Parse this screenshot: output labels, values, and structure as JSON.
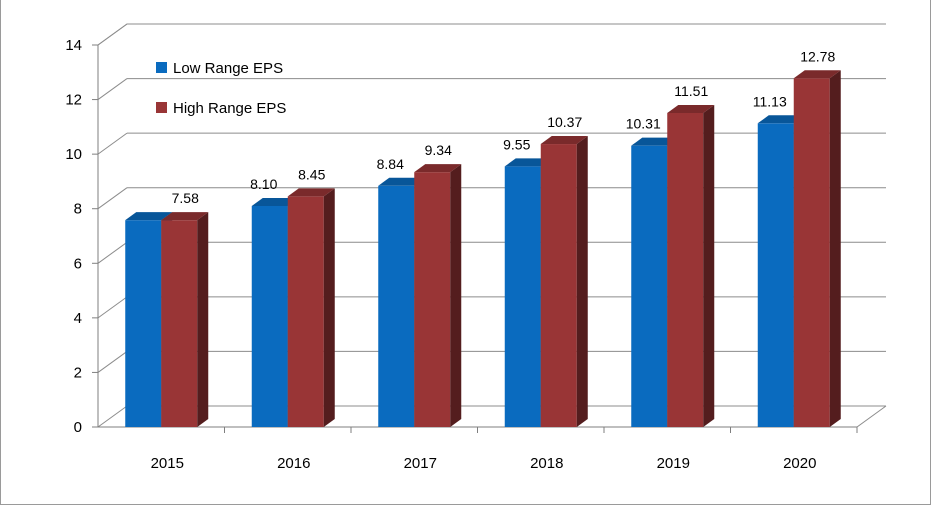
{
  "chart_data": {
    "type": "bar",
    "style": "3d-clustered-column",
    "categories": [
      "2015",
      "2016",
      "2017",
      "2018",
      "2019",
      "2020"
    ],
    "series": [
      {
        "name": "Low Range  EPS",
        "color": "#0a6bbf",
        "values": [
          7.58,
          8.1,
          8.84,
          9.55,
          10.31,
          11.13
        ],
        "labels": [
          "",
          "8.10",
          "8.84",
          "9.55",
          "10.31",
          "11.13"
        ]
      },
      {
        "name": "High Range EPS",
        "color": "#993536",
        "values": [
          7.58,
          8.45,
          9.34,
          10.37,
          11.51,
          12.78
        ],
        "labels": [
          "7.58",
          "8.45",
          "9.34",
          "10.37",
          "11.51",
          "12.78"
        ]
      }
    ],
    "yticks": [
      "0",
      "2",
      "4",
      "6",
      "8",
      "10",
      "12",
      "14"
    ],
    "ylim": [
      0,
      14
    ],
    "grid": true,
    "legend_position": "top-left"
  }
}
